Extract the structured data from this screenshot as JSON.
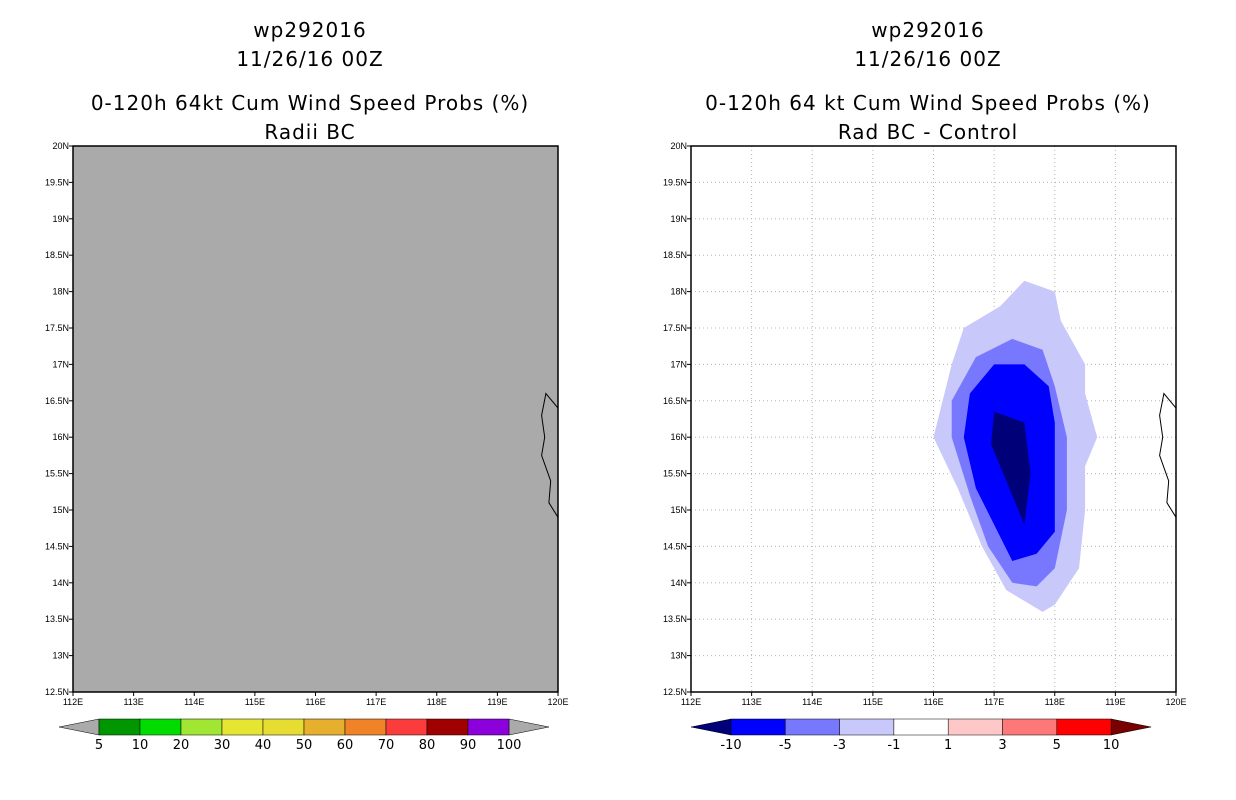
{
  "chart_data": [
    {
      "type": "heatmap",
      "panel": "left",
      "title_lines": [
        "wp292016",
        "11/26/16 00Z",
        "0-120h 64kt Cum Wind Speed Probs (%)",
        "Radii BC"
      ],
      "x_ticks": [
        "112E",
        "113E",
        "114E",
        "115E",
        "116E",
        "117E",
        "118E",
        "119E",
        "120E"
      ],
      "y_ticks": [
        "20N",
        "19.5N",
        "19N",
        "18.5N",
        "18N",
        "17.5N",
        "17N",
        "16.5N",
        "16N",
        "15.5N",
        "15N",
        "14.5N",
        "14N",
        "13.5N",
        "13N",
        "12.5N"
      ],
      "xlim": [
        112,
        120
      ],
      "ylim": [
        12.5,
        20
      ],
      "background_color": "#aaaaaa",
      "grid": false,
      "colorbar": {
        "labels": [
          "5",
          "10",
          "20",
          "30",
          "40",
          "50",
          "60",
          "70",
          "80",
          "90",
          "100"
        ],
        "colors": [
          "#009600",
          "#00dc00",
          "#a0e632",
          "#e6e632",
          "#e6dc32",
          "#e6af2d",
          "#f08228",
          "#fa3c3c",
          "#a00000",
          "#8c00dc"
        ],
        "end_color": "#aaaaaa"
      }
    },
    {
      "type": "heatmap",
      "panel": "right",
      "title_lines": [
        "wp292016",
        "11/26/16 00Z",
        "0-120h 64 kt Cum Wind Speed Probs (%)",
        "Rad BC - Control"
      ],
      "x_ticks": [
        "112E",
        "113E",
        "114E",
        "115E",
        "116E",
        "117E",
        "118E",
        "119E",
        "120E"
      ],
      "y_ticks": [
        "20N",
        "19.5N",
        "19N",
        "18.5N",
        "18N",
        "17.5N",
        "17N",
        "16.5N",
        "16N",
        "15.5N",
        "15N",
        "14.5N",
        "14N",
        "13.5N",
        "13N",
        "12.5N"
      ],
      "xlim": [
        112,
        120
      ],
      "ylim": [
        12.5,
        20
      ],
      "grid": true,
      "contours": [
        {
          "range": "-3 to -1",
          "color": "#c8c8fa",
          "points": [
            [
              117.5,
              18.15
            ],
            [
              117.1,
              17.8
            ],
            [
              116.5,
              17.5
            ],
            [
              116.3,
              17.0
            ],
            [
              116.0,
              16.0
            ],
            [
              116.4,
              15.3
            ],
            [
              116.8,
              14.5
            ],
            [
              117.2,
              13.9
            ],
            [
              117.8,
              13.6
            ],
            [
              118.0,
              13.7
            ],
            [
              118.4,
              14.2
            ],
            [
              118.5,
              15.0
            ],
            [
              118.5,
              15.6
            ],
            [
              118.7,
              16.0
            ],
            [
              118.5,
              16.6
            ],
            [
              118.5,
              17.0
            ],
            [
              118.1,
              17.6
            ],
            [
              118.0,
              18.0
            ]
          ]
        },
        {
          "range": "-5 to -3",
          "color": "#7878ff",
          "points": [
            [
              117.3,
              17.35
            ],
            [
              116.7,
              17.1
            ],
            [
              116.3,
              16.5
            ],
            [
              116.3,
              16.0
            ],
            [
              116.6,
              15.2
            ],
            [
              116.9,
              14.5
            ],
            [
              117.3,
              14.0
            ],
            [
              117.7,
              13.95
            ],
            [
              118.0,
              14.2
            ],
            [
              118.2,
              15.0
            ],
            [
              118.2,
              15.5
            ],
            [
              118.2,
              16.0
            ],
            [
              118.0,
              16.7
            ],
            [
              117.8,
              17.2
            ]
          ]
        },
        {
          "range": "-10 to -5",
          "color": "#0000ff",
          "points": [
            [
              117.0,
              17.0
            ],
            [
              116.6,
              16.6
            ],
            [
              116.5,
              16.0
            ],
            [
              116.7,
              15.3
            ],
            [
              117.0,
              14.8
            ],
            [
              117.3,
              14.3
            ],
            [
              117.7,
              14.4
            ],
            [
              118.0,
              14.7
            ],
            [
              118.0,
              15.5
            ],
            [
              118.0,
              16.2
            ],
            [
              117.9,
              16.7
            ],
            [
              117.5,
              17.0
            ]
          ]
        },
        {
          "range": "< -10",
          "color": "#000078",
          "points": [
            [
              117.0,
              16.35
            ],
            [
              117.5,
              16.2
            ],
            [
              117.6,
              15.5
            ],
            [
              117.5,
              14.8
            ],
            [
              117.2,
              15.4
            ],
            [
              116.95,
              15.9
            ]
          ]
        }
      ],
      "colorbar": {
        "labels": [
          "-10",
          "-5",
          "-3",
          "-1",
          "1",
          "3",
          "5",
          "10"
        ],
        "colors": [
          "#0000ff",
          "#7878ff",
          "#c8c8fa",
          "#ffffff",
          "#ffc8c8",
          "#ff7878",
          "#ff0000"
        ],
        "low_end_color": "#000078",
        "high_end_color": "#780000"
      }
    }
  ],
  "coastline": [
    [
      120.0,
      16.4
    ],
    [
      119.8,
      16.6
    ],
    [
      119.73,
      16.3
    ],
    [
      119.78,
      16.0
    ],
    [
      119.73,
      15.75
    ],
    [
      119.88,
      15.4
    ],
    [
      119.85,
      15.1
    ],
    [
      120.0,
      14.9
    ]
  ]
}
